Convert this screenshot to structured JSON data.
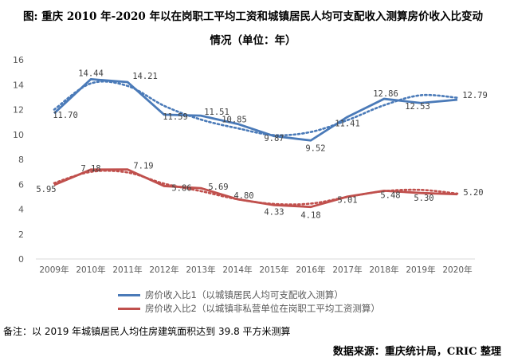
{
  "title_line1": "图: 重庆 2010 年-2020 年以在岗职工平均工资和城镇居民人均可支配收入测算房价收入比变动",
  "title_line2": "情况（单位：年）",
  "note": "备注：以 2019 年城镇居民人均住房建筑面积达到 39.8 平方米测算",
  "source": "数据来源：重庆统计局，CRIC 整理",
  "chart_data": {
    "type": "line",
    "categories": [
      "2009年",
      "2010年",
      "2011年",
      "2012年",
      "2013年",
      "2014年",
      "2015年",
      "2016年",
      "2017年",
      "2018年",
      "2019年",
      "2020年"
    ],
    "ylim": [
      0,
      16
    ],
    "yticks": [
      0,
      2,
      4,
      6,
      8,
      10,
      12,
      14,
      16
    ],
    "grid": false,
    "legend_position": "bottom",
    "series": [
      {
        "name": "房价收入比1（以城镇居民人均可支配收入测算）",
        "color": "#4a7ab8",
        "values": [
          11.7,
          14.44,
          14.21,
          11.59,
          11.51,
          10.85,
          9.87,
          9.52,
          11.41,
          12.86,
          12.53,
          12.79
        ],
        "labels": [
          "11.70",
          "14.44",
          "14.21",
          "11.59",
          "11.51",
          "10.85",
          "9.87",
          "9.52",
          "11.41",
          "12.86",
          "12.53",
          "12.79"
        ],
        "trend": [
          12.0,
          14.1,
          13.9,
          12.3,
          11.2,
          10.5,
          9.95,
          10.2,
          11.15,
          12.35,
          13.15,
          12.95
        ]
      },
      {
        "name": "房价收入比2（以城镇非私营单位在岗职工平均工资测算）",
        "color": "#c0504d",
        "values": [
          5.95,
          7.18,
          7.19,
          5.86,
          5.69,
          4.8,
          4.33,
          4.18,
          5.01,
          5.48,
          5.3,
          5.2
        ],
        "labels": [
          "5.95",
          "7.18",
          "7.19",
          "5.86",
          "5.69",
          "4.80",
          "4.33",
          "4.18",
          "5.01",
          "5.48",
          "5.30",
          "5.20"
        ],
        "trend": [
          6.1,
          7.0,
          6.95,
          6.05,
          5.45,
          4.8,
          4.42,
          4.45,
          4.98,
          5.45,
          5.55,
          5.25
        ]
      }
    ]
  }
}
